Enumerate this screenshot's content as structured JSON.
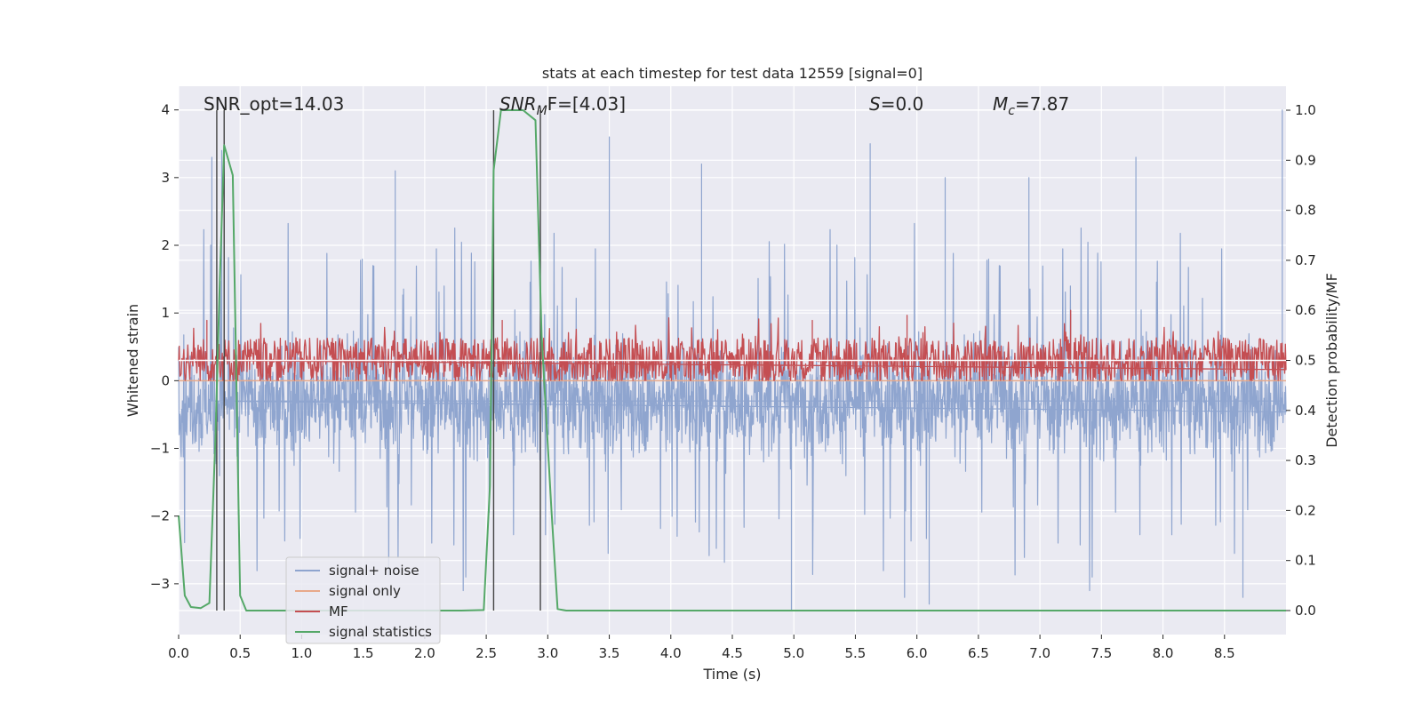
{
  "chart_data": {
    "type": "line",
    "title": "stats at each timestep for test data 12559 [signal=0]",
    "xlabel": "Time (s)",
    "ylabel_left": "Whitened strain",
    "ylabel_right": "Detection probability/MF",
    "xlim": [
      0.0,
      9.0
    ],
    "ylim_left": [
      -3.75,
      4.35
    ],
    "ylim_right": [
      -0.048,
      1.048
    ],
    "xticks": [
      "0.0",
      "0.5",
      "1.0",
      "1.5",
      "2.0",
      "2.5",
      "3.0",
      "3.5",
      "4.0",
      "4.5",
      "5.0",
      "5.5",
      "6.0",
      "6.5",
      "7.0",
      "7.5",
      "8.0",
      "8.5"
    ],
    "yticks_left": [
      "4",
      "3",
      "2",
      "1",
      "0",
      "−1",
      "−2",
      "−3"
    ],
    "yticks_right": [
      "1.0",
      "0.9",
      "0.8",
      "0.7",
      "0.6",
      "0.5",
      "0.4",
      "0.3",
      "0.2",
      "0.1",
      "0.0"
    ],
    "grid": true,
    "legend_position": "lower-left",
    "annotations": {
      "snr_opt": "SNR_opt=14.03",
      "snr_mf_main": "SNR",
      "snr_mf_sub": "M",
      "snr_mf_tail": "F=[4.03]",
      "s_main": "S",
      "s_tail": "=0.0",
      "mc_main": "M",
      "mc_sub": "c",
      "mc_tail": "=7.87"
    },
    "series": [
      {
        "name": "signal+ noise",
        "color": "#8fa5cf",
        "axis": "left",
        "noise_center": -0.3,
        "noise_envelope": [
          -2.9,
          1.9
        ],
        "spike_peaks": [
          {
            "x": 0.27,
            "y": 3.3
          },
          {
            "x": 0.35,
            "y": 3.4
          },
          {
            "x": 1.76,
            "y": 3.1
          },
          {
            "x": 3.5,
            "y": 3.6
          },
          {
            "x": 4.25,
            "y": 3.2
          },
          {
            "x": 5.62,
            "y": 3.5
          },
          {
            "x": 6.23,
            "y": 3.0
          },
          {
            "x": 6.91,
            "y": 3.0
          },
          {
            "x": 7.78,
            "y": 3.3
          },
          {
            "x": 8.97,
            "y": 4.0
          },
          {
            "x": 4.98,
            "y": -3.4
          },
          {
            "x": 6.1,
            "y": -3.3
          },
          {
            "x": 8.65,
            "y": -3.2
          },
          {
            "x": 5.9,
            "y": -3.2
          }
        ]
      },
      {
        "name": "signal only",
        "color": "#e8a98a",
        "axis": "left",
        "x": [
          0.0,
          9.0
        ],
        "y": [
          0.0,
          0.0
        ]
      },
      {
        "name": "MF",
        "color": "#c44e52",
        "axis": "right",
        "band": [
          0.46,
          0.6
        ],
        "center": 0.5,
        "peaks": [
          {
            "x": 0.23,
            "y": 0.58
          },
          {
            "x": 2.63,
            "y": 0.58
          },
          {
            "x": 5.92,
            "y": 0.59
          },
          {
            "x": 7.25,
            "y": 0.6
          },
          {
            "x": 5.15,
            "y": 0.58
          }
        ]
      },
      {
        "name": "signal statistics",
        "color": "#55a868",
        "axis": "right",
        "x": [
          0.0,
          0.05,
          0.1,
          0.18,
          0.25,
          0.3,
          0.33,
          0.37,
          0.44,
          0.5,
          0.55,
          2.3,
          2.48,
          2.53,
          2.56,
          2.62,
          2.8,
          2.9,
          2.95,
          3.03,
          3.08,
          3.15,
          9.0
        ],
        "y": [
          0.19,
          0.03,
          0.007,
          0.005,
          0.015,
          0.35,
          0.62,
          0.93,
          0.87,
          0.03,
          0.0,
          0.0,
          0.001,
          0.25,
          0.88,
          1.0,
          1.0,
          0.98,
          0.55,
          0.2,
          0.003,
          0.0,
          0.0
        ]
      }
    ],
    "vertical_lines_x": [
      0.31,
      0.37,
      2.56,
      2.94
    ]
  }
}
